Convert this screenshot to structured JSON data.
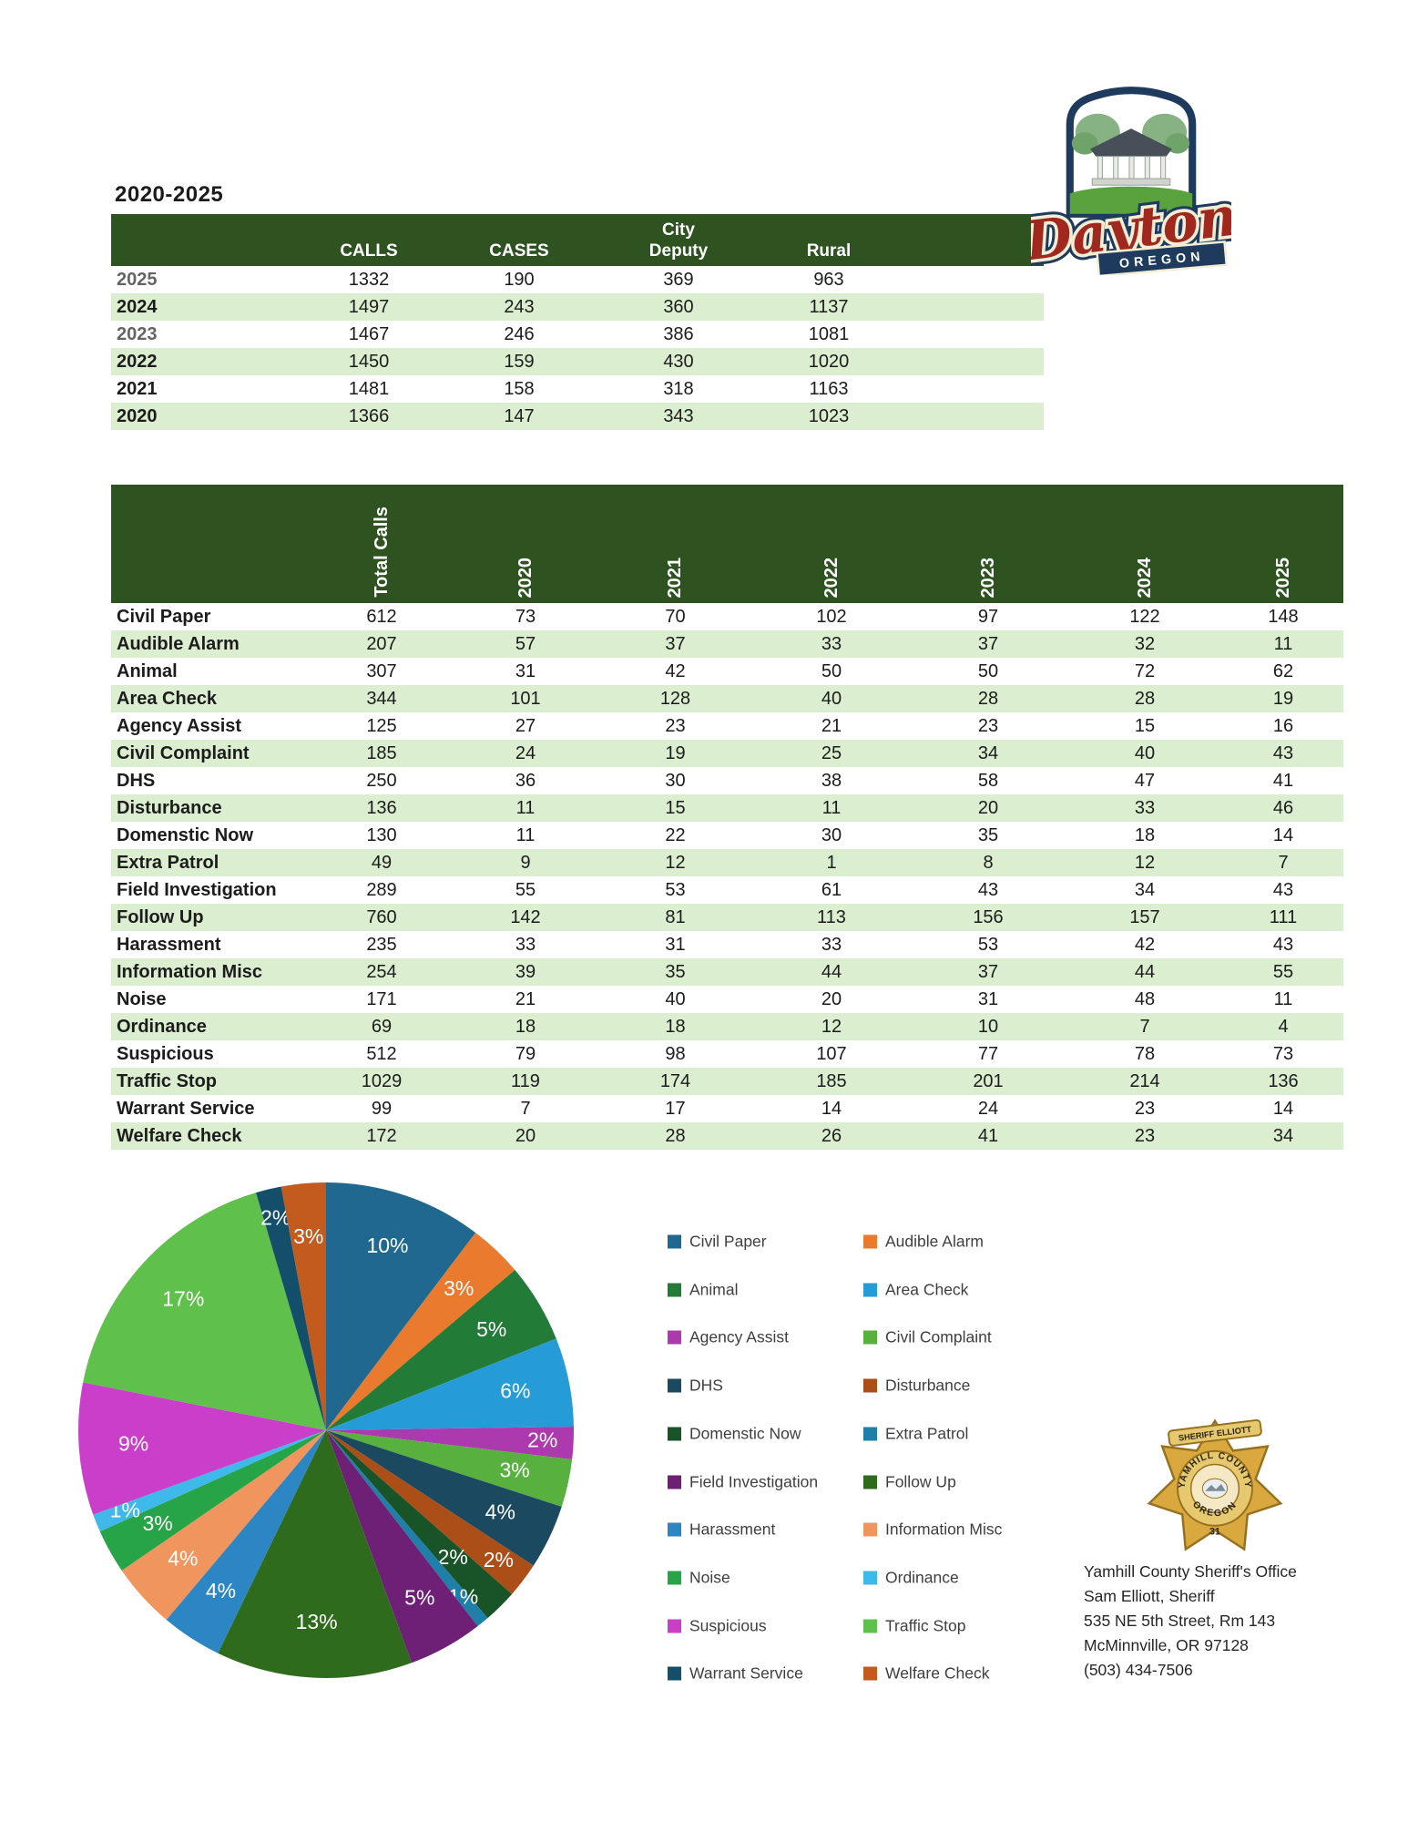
{
  "title": "2020-2025",
  "summary_table": {
    "col_headers": {
      "calls": "CALLS",
      "cases": "CASES",
      "city": "City",
      "deputy": "Deputy",
      "rural": "Rural"
    },
    "rows": [
      {
        "year": "2025",
        "calls": "1332",
        "cases": "190",
        "city_deputy": "369",
        "rural": "963",
        "muted": true
      },
      {
        "year": "2024",
        "calls": "1497",
        "cases": "243",
        "city_deputy": "360",
        "rural": "1137",
        "muted": false
      },
      {
        "year": "2023",
        "calls": "1467",
        "cases": "246",
        "city_deputy": "386",
        "rural": "1081",
        "muted": true
      },
      {
        "year": "2022",
        "calls": "1450",
        "cases": "159",
        "city_deputy": "430",
        "rural": "1020",
        "muted": false
      },
      {
        "year": "2021",
        "calls": "1481",
        "cases": "158",
        "city_deputy": "318",
        "rural": "1163",
        "muted": false
      },
      {
        "year": "2020",
        "calls": "1366",
        "cases": "147",
        "city_deputy": "343",
        "rural": "1023",
        "muted": false
      }
    ]
  },
  "detail_table": {
    "col_headers": [
      "Total Calls",
      "2020",
      "2021",
      "2022",
      "2023",
      "2024",
      "2025"
    ],
    "rows": [
      {
        "label": "Civil Paper",
        "values": [
          612,
          73,
          70,
          102,
          97,
          122,
          148
        ]
      },
      {
        "label": "Audible Alarm",
        "values": [
          207,
          57,
          37,
          33,
          37,
          32,
          11
        ]
      },
      {
        "label": "Animal",
        "values": [
          307,
          31,
          42,
          50,
          50,
          72,
          62
        ]
      },
      {
        "label": "Area Check",
        "values": [
          344,
          101,
          128,
          40,
          28,
          28,
          19
        ]
      },
      {
        "label": "Agency Assist",
        "values": [
          125,
          27,
          23,
          21,
          23,
          15,
          16
        ]
      },
      {
        "label": "Civil Complaint",
        "values": [
          185,
          24,
          19,
          25,
          34,
          40,
          43
        ]
      },
      {
        "label": "DHS",
        "values": [
          250,
          36,
          30,
          38,
          58,
          47,
          41
        ]
      },
      {
        "label": "Disturbance",
        "values": [
          136,
          11,
          15,
          11,
          20,
          33,
          46
        ]
      },
      {
        "label": "Domenstic Now",
        "values": [
          130,
          11,
          22,
          30,
          35,
          18,
          14
        ]
      },
      {
        "label": "Extra Patrol",
        "values": [
          49,
          9,
          12,
          1,
          8,
          12,
          7
        ]
      },
      {
        "label": "Field Investigation",
        "values": [
          289,
          55,
          53,
          61,
          43,
          34,
          43
        ]
      },
      {
        "label": "Follow Up",
        "values": [
          760,
          142,
          81,
          113,
          156,
          157,
          111
        ]
      },
      {
        "label": "Harassment",
        "values": [
          235,
          33,
          31,
          33,
          53,
          42,
          43
        ]
      },
      {
        "label": "Information Misc",
        "values": [
          254,
          39,
          35,
          44,
          37,
          44,
          55
        ]
      },
      {
        "label": "Noise",
        "values": [
          171,
          21,
          40,
          20,
          31,
          48,
          11
        ]
      },
      {
        "label": "Ordinance",
        "values": [
          69,
          18,
          18,
          12,
          10,
          7,
          4
        ]
      },
      {
        "label": "Suspicious",
        "values": [
          512,
          79,
          98,
          107,
          77,
          78,
          73
        ]
      },
      {
        "label": "Traffic Stop",
        "values": [
          1029,
          119,
          174,
          185,
          201,
          214,
          136
        ]
      },
      {
        "label": "Warrant Service",
        "values": [
          99,
          7,
          17,
          14,
          24,
          23,
          14
        ]
      },
      {
        "label": "Welfare Check",
        "values": [
          172,
          20,
          28,
          26,
          41,
          23,
          34
        ]
      }
    ]
  },
  "chart_data": {
    "type": "pie",
    "title": "",
    "categories": [
      "Civil Paper",
      "Audible Alarm",
      "Animal",
      "Area Check",
      "Agency Assist",
      "Civil Complaint",
      "DHS",
      "Disturbance",
      "Domenstic Now",
      "Extra Patrol",
      "Field Investigation",
      "Follow Up",
      "Harassment",
      "Information Misc",
      "Noise",
      "Ordinance",
      "Suspicious",
      "Traffic Stop",
      "Warrant Service",
      "Welfare Check"
    ],
    "values": [
      612,
      207,
      307,
      344,
      125,
      185,
      250,
      136,
      130,
      49,
      289,
      760,
      235,
      254,
      171,
      69,
      512,
      1029,
      99,
      172
    ],
    "percent_labels": [
      "10%",
      "3%",
      "5%",
      "6%",
      "2%",
      "3%",
      "4%",
      "2%",
      "2%",
      "1%",
      "5%",
      "13%",
      "4%",
      "4%",
      "3%",
      "1%",
      "9%",
      "17%",
      "2%",
      "3%"
    ],
    "colors": [
      "#20688F",
      "#E97A2E",
      "#237B38",
      "#259CD8",
      "#AC3AAE",
      "#58B13E",
      "#1B4A60",
      "#AC4E18",
      "#185427",
      "#1F7FA8",
      "#6E2077",
      "#2F6B1C",
      "#2C86C3",
      "#F0955E",
      "#27A447",
      "#3FB9E9",
      "#C93FC9",
      "#5FC14B",
      "#134F6B",
      "#C25B1D"
    ],
    "start_angle_deg": -90,
    "direction": "clockwise",
    "legend_position": "right",
    "labels_inside": true
  },
  "logo": {
    "name": "Dayton",
    "region": "OREGON"
  },
  "badge": {
    "banner": "SHERIFF ELLIOTT",
    "arc_top": "YAMHILL COUNTY",
    "arc_bottom": "OREGON",
    "number": "31"
  },
  "contact": {
    "lines": [
      "Yamhill County Sheriff's Office",
      "Sam Elliott, Sheriff",
      "535 NE 5th Street, Rm 143",
      "McMinnville, OR 97128",
      "(503) 434-7506"
    ]
  },
  "theme": {
    "header_green": "#2E5321",
    "stripe_green": "#DBEFD0"
  }
}
